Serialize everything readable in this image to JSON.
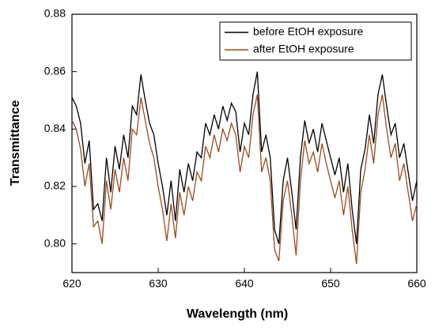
{
  "chart_data": {
    "type": "line",
    "xlabel": "Wavelength (nm)",
    "ylabel": "Transmittance",
    "x": [
      620,
      620.5,
      621,
      621.5,
      622,
      622.5,
      623,
      623.5,
      624,
      624.5,
      625,
      625.5,
      626,
      626.5,
      627,
      627.5,
      628,
      628.5,
      629,
      629.5,
      630,
      630.5,
      631,
      631.5,
      632,
      632.5,
      633,
      633.5,
      634,
      634.5,
      635,
      635.5,
      636,
      636.5,
      637,
      637.5,
      638,
      638.5,
      639,
      639.5,
      640,
      640.5,
      641,
      641.5,
      642,
      642.5,
      643,
      643.5,
      644,
      644.5,
      645,
      645.5,
      646,
      646.5,
      647,
      647.5,
      648,
      648.5,
      649,
      649.5,
      650,
      650.5,
      651,
      651.5,
      652,
      652.5,
      653,
      653.5,
      654,
      654.5,
      655,
      655.5,
      656,
      656.5,
      657,
      657.5,
      658,
      658.5,
      659,
      659.5,
      660
    ],
    "series": [
      {
        "name": "before EtOH exposure",
        "color": "#000000",
        "values": [
          0.851,
          0.848,
          0.842,
          0.828,
          0.836,
          0.812,
          0.814,
          0.808,
          0.83,
          0.818,
          0.834,
          0.826,
          0.838,
          0.83,
          0.848,
          0.845,
          0.859,
          0.85,
          0.842,
          0.838,
          0.828,
          0.82,
          0.81,
          0.822,
          0.808,
          0.826,
          0.818,
          0.828,
          0.822,
          0.832,
          0.83,
          0.842,
          0.838,
          0.845,
          0.84,
          0.848,
          0.843,
          0.849,
          0.846,
          0.832,
          0.842,
          0.838,
          0.852,
          0.86,
          0.832,
          0.838,
          0.83,
          0.805,
          0.8,
          0.822,
          0.83,
          0.818,
          0.805,
          0.83,
          0.843,
          0.835,
          0.84,
          0.832,
          0.842,
          0.836,
          0.83,
          0.824,
          0.83,
          0.818,
          0.828,
          0.812,
          0.8,
          0.826,
          0.833,
          0.845,
          0.835,
          0.852,
          0.859,
          0.848,
          0.838,
          0.842,
          0.83,
          0.835,
          0.825,
          0.815,
          0.822
        ]
      },
      {
        "name": "after EtOH exposure",
        "color": "#9c4a1c",
        "values": [
          0.843,
          0.84,
          0.833,
          0.82,
          0.828,
          0.806,
          0.808,
          0.8,
          0.822,
          0.812,
          0.826,
          0.818,
          0.83,
          0.822,
          0.84,
          0.838,
          0.851,
          0.843,
          0.835,
          0.83,
          0.82,
          0.812,
          0.801,
          0.814,
          0.802,
          0.818,
          0.81,
          0.82,
          0.815,
          0.825,
          0.822,
          0.834,
          0.83,
          0.838,
          0.832,
          0.84,
          0.836,
          0.842,
          0.838,
          0.825,
          0.834,
          0.83,
          0.845,
          0.852,
          0.825,
          0.83,
          0.822,
          0.798,
          0.794,
          0.815,
          0.822,
          0.81,
          0.796,
          0.822,
          0.836,
          0.828,
          0.832,
          0.825,
          0.835,
          0.828,
          0.822,
          0.816,
          0.822,
          0.81,
          0.82,
          0.805,
          0.793,
          0.818,
          0.826,
          0.838,
          0.828,
          0.845,
          0.852,
          0.84,
          0.83,
          0.835,
          0.822,
          0.828,
          0.818,
          0.808,
          0.814
        ]
      }
    ],
    "xlim": [
      620,
      660
    ],
    "xticks": [
      620,
      630,
      640,
      650,
      660
    ],
    "ylim": [
      0.79,
      0.88
    ],
    "yticks": [
      {
        "value": 0.8,
        "label": "0.80"
      },
      {
        "value": 0.82,
        "label": "0.82"
      },
      {
        "value": 0.84,
        "label": "0.84"
      },
      {
        "value": 0.86,
        "label": "0.86"
      },
      {
        "value": 0.88,
        "label": "0.88"
      }
    ],
    "legend": "upper right"
  }
}
